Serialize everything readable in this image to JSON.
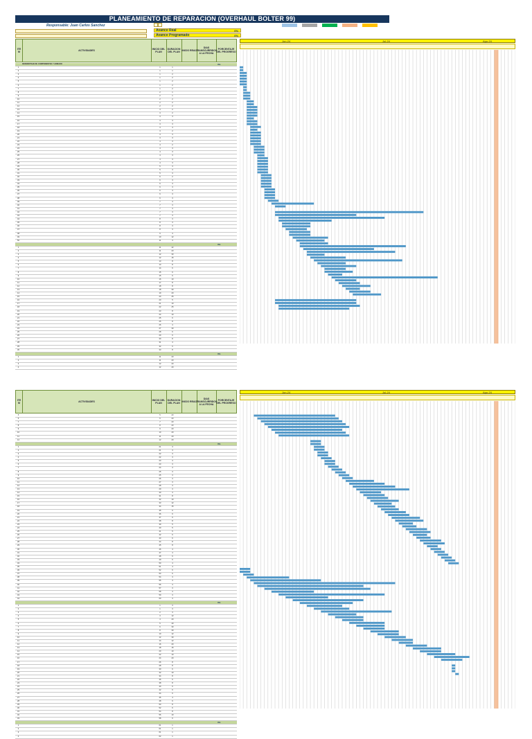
{
  "sheet1": {
    "title": "PLANEAMIENTO DE REPARACION  (OVERHAUL BOLTER 99)",
    "responsible": "Responsable: Juan Carlos Sanchez",
    "info_lines": [
      "",
      ""
    ],
    "stats_top": {
      "label": "",
      "value": ""
    },
    "avance_real": {
      "label": "Avance Real",
      "pct": "0%"
    },
    "avance_programado": {
      "label": "Avance Programado",
      "pct": "0%"
    },
    "columns": {
      "item": "ITE M",
      "activity": "ACTIVIDADES",
      "start": "INICIO DEL PLAN",
      "duration": "DURACION DEL PLAN",
      "real_start": "INICIO REAL",
      "days_to_date": "DIAS TRANSCURRIDOS A LA FECHA",
      "progress": "PORCENTAJE DEL PROGRESO"
    },
    "months": [
      "Jun-24",
      "Jul-24",
      "Ago-24"
    ],
    "legend": [
      "",
      "",
      "",
      "",
      ""
    ],
    "rows": [
      {
        "type": "sec",
        "n": "",
        "act": "DESMONTAJE DE COMPONENTES Y ARMADO",
        "pct": "0%"
      },
      {
        "n": "1",
        "act": "",
        "a": "1",
        "b": "1"
      },
      {
        "n": "2",
        "act": "",
        "a": "1",
        "b": "1"
      },
      {
        "n": "3",
        "act": "",
        "a": "1",
        "b": "2"
      },
      {
        "n": "4",
        "act": "",
        "a": "1",
        "b": "2"
      },
      {
        "n": "5",
        "act": "",
        "a": "1",
        "b": "2"
      },
      {
        "n": "6",
        "act": "",
        "a": "1",
        "b": "2"
      },
      {
        "n": "7",
        "act": "",
        "a": "1",
        "b": "2"
      },
      {
        "n": "8",
        "act": "",
        "a": "2",
        "b": "1"
      },
      {
        "n": "9",
        "act": "",
        "a": "2",
        "b": "1"
      },
      {
        "n": "10",
        "act": "",
        "a": "2",
        "b": "2"
      },
      {
        "n": "11",
        "act": "",
        "a": "2",
        "b": "2"
      },
      {
        "n": "12",
        "act": "",
        "a": "2",
        "b": "2"
      },
      {
        "n": "13",
        "act": "",
        "a": "3",
        "b": "2"
      },
      {
        "n": "14",
        "act": "",
        "a": "3",
        "b": "2"
      },
      {
        "n": "15",
        "act": "",
        "a": "3",
        "b": "3"
      },
      {
        "n": "16",
        "act": "",
        "a": "3",
        "b": "3"
      },
      {
        "n": "17",
        "act": "",
        "a": "3",
        "b": "3"
      },
      {
        "n": "18",
        "act": "",
        "a": "3",
        "b": "3"
      },
      {
        "n": "19",
        "act": "",
        "a": "3",
        "b": "2"
      },
      {
        "n": "20",
        "act": "",
        "a": "3",
        "b": "3"
      },
      {
        "n": "21",
        "act": "",
        "a": "3",
        "b": "3"
      },
      {
        "n": "22",
        "act": "",
        "a": "4",
        "b": "3"
      },
      {
        "n": "23",
        "act": "",
        "a": "4",
        "b": "2"
      },
      {
        "n": "24",
        "act": "",
        "a": "4",
        "b": "3"
      },
      {
        "n": "25",
        "act": "",
        "a": "4",
        "b": "3"
      },
      {
        "n": "26",
        "act": "",
        "a": "4",
        "b": "3"
      },
      {
        "n": "27",
        "act": "",
        "a": "4",
        "b": "3"
      },
      {
        "n": "28",
        "act": "",
        "a": "4",
        "b": "3"
      },
      {
        "n": "29",
        "act": "",
        "a": "5",
        "b": "3"
      },
      {
        "n": "30",
        "act": "",
        "a": "5",
        "b": "3"
      },
      {
        "n": "31",
        "act": "",
        "a": "5",
        "b": "3"
      },
      {
        "n": "32",
        "act": "",
        "a": "6",
        "b": "2"
      },
      {
        "n": "33",
        "act": "",
        "a": "6",
        "b": "3"
      },
      {
        "n": "34",
        "act": "",
        "a": "6",
        "b": "3"
      },
      {
        "n": "35",
        "act": "",
        "a": "6",
        "b": "3"
      },
      {
        "n": "36",
        "act": "",
        "a": "6",
        "b": "3"
      },
      {
        "n": "37",
        "act": "",
        "a": "6",
        "b": "3"
      },
      {
        "n": "38",
        "act": "",
        "a": "6",
        "b": "3"
      },
      {
        "n": "39",
        "act": "",
        "a": "7",
        "b": "3"
      },
      {
        "n": "40",
        "act": "",
        "a": "7",
        "b": "3"
      },
      {
        "n": "41",
        "act": "",
        "a": "7",
        "b": "3"
      },
      {
        "n": "42",
        "act": "",
        "a": "7",
        "b": "3"
      },
      {
        "n": "43",
        "act": "",
        "a": "7",
        "b": "3"
      },
      {
        "n": "44",
        "act": "",
        "a": "8",
        "b": "3"
      },
      {
        "n": "45",
        "act": "",
        "a": "8",
        "b": "3"
      },
      {
        "n": "46",
        "act": "",
        "a": "8",
        "b": "3"
      },
      {
        "n": "47",
        "act": "",
        "a": "8",
        "b": "3"
      },
      {
        "n": "48",
        "act": "",
        "a": "9",
        "b": "3"
      },
      {
        "n": "49",
        "act": "",
        "a": "10",
        "b": "12"
      },
      {
        "n": "50",
        "act": "",
        "a": "11",
        "b": "3"
      },
      {
        "type": "sec",
        "n": "",
        "act": "",
        "pct": "0%"
      },
      {
        "n": "1",
        "act": "",
        "a": "11",
        "b": "42"
      },
      {
        "n": "2",
        "act": "",
        "a": "11",
        "b": "23"
      },
      {
        "n": "3",
        "act": "",
        "a": "12",
        "b": "30"
      },
      {
        "n": "4",
        "act": "",
        "a": "12",
        "b": "15"
      },
      {
        "n": "5",
        "act": "",
        "a": "13",
        "b": "8"
      },
      {
        "n": "6",
        "act": "",
        "a": "13",
        "b": "8"
      },
      {
        "n": "7",
        "act": "",
        "a": "14",
        "b": "6"
      },
      {
        "n": "8",
        "act": "",
        "a": "15",
        "b": "6"
      },
      {
        "n": "9",
        "act": "",
        "a": "15",
        "b": "6"
      },
      {
        "n": "10",
        "act": "",
        "a": "16",
        "b": "10"
      },
      {
        "n": "11",
        "act": "",
        "a": "17",
        "b": "8"
      },
      {
        "n": "12",
        "act": "",
        "a": "18",
        "b": "8"
      },
      {
        "n": "13",
        "act": "",
        "a": "18",
        "b": "30"
      },
      {
        "n": "14",
        "act": "",
        "a": "19",
        "b": "20"
      },
      {
        "n": "15",
        "act": "",
        "a": "20",
        "b": "25"
      },
      {
        "n": "16",
        "act": "",
        "a": "20",
        "b": "5"
      },
      {
        "n": "17",
        "act": "",
        "a": "21",
        "b": "10"
      },
      {
        "n": "18",
        "act": "",
        "a": "22",
        "b": "25"
      },
      {
        "n": "19",
        "act": "",
        "a": "23",
        "b": "8"
      },
      {
        "n": "20",
        "act": "",
        "a": "24",
        "b": "10"
      },
      {
        "n": "21",
        "act": "",
        "a": "25",
        "b": "6"
      },
      {
        "n": "22",
        "act": "",
        "a": "25",
        "b": "8"
      },
      {
        "n": "23",
        "act": "",
        "a": "26",
        "b": "4"
      },
      {
        "n": "24",
        "act": "",
        "a": "27",
        "b": "30"
      },
      {
        "n": "25",
        "act": "",
        "a": "28",
        "b": "6"
      },
      {
        "n": "26",
        "act": "",
        "a": "29",
        "b": "6"
      },
      {
        "n": "27",
        "act": "",
        "a": "30",
        "b": "8"
      },
      {
        "n": "28",
        "act": "",
        "a": "31",
        "b": "4"
      },
      {
        "n": "29",
        "act": "",
        "a": "32",
        "b": "6"
      },
      {
        "n": "30",
        "act": "",
        "a": "33",
        "b": "8"
      },
      {
        "type": "sec",
        "n": "",
        "act": "",
        "pct": "0%"
      },
      {
        "n": "1",
        "act": "",
        "a": "11",
        "b": "23"
      },
      {
        "n": "2",
        "act": "",
        "a": "11",
        "b": "23"
      },
      {
        "n": "3",
        "act": "",
        "a": "12",
        "b": "23"
      },
      {
        "n": "4",
        "act": "",
        "a": "12",
        "b": "20"
      }
    ]
  },
  "sheet2": {
    "months": [
      "Jun-24",
      "Jul-24",
      "Ago-24"
    ],
    "columns": {
      "item": "ITE M",
      "activity": "ACTIVIDADES",
      "start": "INICIO DEL PLAN",
      "duration": "DURACION DEL PLAN",
      "real_start": "INICIO REAL",
      "days_to_date": "DIAS TRANSCURRIDOS A LA FECHA",
      "progress": "PORCENTAJE DEL PROGRESO"
    },
    "rows": [
      {
        "n": "5",
        "act": "",
        "a": "5",
        "b": "23"
      },
      {
        "n": "6",
        "act": "",
        "a": "6",
        "b": "23"
      },
      {
        "n": "7",
        "act": "",
        "a": "7",
        "b": "23"
      },
      {
        "n": "8",
        "act": "",
        "a": "8",
        "b": "23"
      },
      {
        "n": "9",
        "act": "",
        "a": "9",
        "b": "23"
      },
      {
        "n": "10",
        "act": "",
        "a": "10",
        "b": "20"
      },
      {
        "n": "11",
        "act": "",
        "a": "11",
        "b": "20"
      },
      {
        "n": "12",
        "act": "",
        "a": "12",
        "b": "20"
      },
      {
        "type": "sec",
        "n": "",
        "act": "",
        "pct": "0%"
      },
      {
        "n": "1",
        "act": "",
        "a": "21",
        "b": "3"
      },
      {
        "n": "2",
        "act": "",
        "a": "21",
        "b": "3"
      },
      {
        "n": "3",
        "act": "",
        "a": "22",
        "b": "3"
      },
      {
        "n": "4",
        "act": "",
        "a": "22",
        "b": "3"
      },
      {
        "n": "5",
        "act": "",
        "a": "23",
        "b": "3"
      },
      {
        "n": "6",
        "act": "",
        "a": "23",
        "b": "3"
      },
      {
        "n": "7",
        "act": "",
        "a": "24",
        "b": "3"
      },
      {
        "n": "8",
        "act": "",
        "a": "25",
        "b": "3"
      },
      {
        "n": "9",
        "act": "",
        "a": "25",
        "b": "3"
      },
      {
        "n": "10",
        "act": "",
        "a": "26",
        "b": "3"
      },
      {
        "n": "11",
        "act": "",
        "a": "27",
        "b": "3"
      },
      {
        "n": "12",
        "act": "",
        "a": "28",
        "b": "3"
      },
      {
        "n": "13",
        "act": "",
        "a": "29",
        "b": "3"
      },
      {
        "n": "14",
        "act": "",
        "a": "30",
        "b": "3"
      },
      {
        "n": "15",
        "act": "",
        "a": "31",
        "b": "8"
      },
      {
        "n": "16",
        "act": "",
        "a": "32",
        "b": "10"
      },
      {
        "n": "17",
        "act": "",
        "a": "33",
        "b": "12"
      },
      {
        "n": "18",
        "act": "",
        "a": "34",
        "b": "15"
      },
      {
        "n": "19",
        "act": "",
        "a": "35",
        "b": "6"
      },
      {
        "n": "20",
        "act": "",
        "a": "36",
        "b": "6"
      },
      {
        "n": "21",
        "act": "",
        "a": "37",
        "b": "6"
      },
      {
        "n": "22",
        "act": "",
        "a": "38",
        "b": "8"
      },
      {
        "n": "23",
        "act": "",
        "a": "39",
        "b": "5"
      },
      {
        "n": "24",
        "act": "",
        "a": "40",
        "b": "5"
      },
      {
        "n": "25",
        "act": "",
        "a": "41",
        "b": "5"
      },
      {
        "n": "26",
        "act": "",
        "a": "42",
        "b": "6"
      },
      {
        "n": "27",
        "act": "",
        "a": "43",
        "b": "6"
      },
      {
        "n": "28",
        "act": "",
        "a": "44",
        "b": "8"
      },
      {
        "n": "29",
        "act": "",
        "a": "45",
        "b": "8"
      },
      {
        "n": "30",
        "act": "",
        "a": "46",
        "b": "4"
      },
      {
        "n": "31",
        "act": "",
        "a": "47",
        "b": "4"
      },
      {
        "n": "32",
        "act": "",
        "a": "48",
        "b": "6"
      },
      {
        "n": "33",
        "act": "",
        "a": "49",
        "b": "6"
      },
      {
        "n": "34",
        "act": "",
        "a": "50",
        "b": "4"
      },
      {
        "n": "35",
        "act": "",
        "a": "51",
        "b": "4"
      },
      {
        "n": "36",
        "act": "",
        "a": "52",
        "b": "6"
      },
      {
        "n": "37",
        "act": "",
        "a": "53",
        "b": "6"
      },
      {
        "n": "38",
        "act": "",
        "a": "54",
        "b": "3"
      },
      {
        "n": "39",
        "act": "",
        "a": "55",
        "b": "3"
      },
      {
        "n": "40",
        "act": "",
        "a": "56",
        "b": "3"
      },
      {
        "n": "41",
        "act": "",
        "a": "57",
        "b": "3"
      },
      {
        "n": "42",
        "act": "",
        "a": "58",
        "b": "3"
      },
      {
        "n": "43",
        "act": "",
        "a": "59",
        "b": "3"
      },
      {
        "n": "44",
        "act": "",
        "a": "60",
        "b": "3"
      },
      {
        "type": "sec",
        "n": "",
        "act": "",
        "pct": "0%"
      },
      {
        "n": "1",
        "act": "",
        "a": "1",
        "b": "3"
      },
      {
        "n": "2",
        "act": "",
        "a": "1",
        "b": "3"
      },
      {
        "n": "3",
        "act": "",
        "a": "2",
        "b": "3"
      },
      {
        "n": "4",
        "act": "",
        "a": "3",
        "b": "12"
      },
      {
        "n": "5",
        "act": "",
        "a": "4",
        "b": "20"
      },
      {
        "n": "6",
        "act": "",
        "a": "5",
        "b": "40"
      },
      {
        "n": "7",
        "act": "",
        "a": "6",
        "b": "30"
      },
      {
        "n": "8",
        "act": "",
        "a": "8",
        "b": "30"
      },
      {
        "n": "9",
        "act": "",
        "a": "10",
        "b": "12"
      },
      {
        "n": "10",
        "act": "",
        "a": "12",
        "b": "30"
      },
      {
        "n": "11",
        "act": "",
        "a": "14",
        "b": "12"
      },
      {
        "n": "12",
        "act": "",
        "a": "16",
        "b": "20"
      },
      {
        "n": "13",
        "act": "",
        "a": "18",
        "b": "15"
      },
      {
        "n": "14",
        "act": "",
        "a": "20",
        "b": "10"
      },
      {
        "n": "15",
        "act": "",
        "a": "22",
        "b": "10"
      },
      {
        "n": "16",
        "act": "",
        "a": "24",
        "b": "20"
      },
      {
        "n": "17",
        "act": "",
        "a": "26",
        "b": "8"
      },
      {
        "n": "18",
        "act": "",
        "a": "28",
        "b": "8"
      },
      {
        "n": "19",
        "act": "",
        "a": "30",
        "b": "6"
      },
      {
        "n": "20",
        "act": "",
        "a": "32",
        "b": "10"
      },
      {
        "n": "21",
        "act": "",
        "a": "34",
        "b": "8"
      },
      {
        "n": "22",
        "act": "",
        "a": "36",
        "b": "6"
      },
      {
        "n": "23",
        "act": "",
        "a": "38",
        "b": "8"
      },
      {
        "n": "24",
        "act": "",
        "a": "40",
        "b": "6"
      },
      {
        "n": "25",
        "act": "",
        "a": "42",
        "b": "6"
      },
      {
        "n": "26",
        "act": "",
        "a": "44",
        "b": "6"
      },
      {
        "n": "27",
        "act": "",
        "a": "46",
        "b": "4"
      },
      {
        "n": "28",
        "act": "",
        "a": "48",
        "b": "6"
      },
      {
        "n": "29",
        "act": "",
        "a": "50",
        "b": "8"
      },
      {
        "n": "30",
        "act": "",
        "a": "52",
        "b": "6"
      },
      {
        "n": "31",
        "act": "",
        "a": "54",
        "b": "8"
      },
      {
        "n": "32",
        "act": "",
        "a": "56",
        "b": "10"
      },
      {
        "n": "33",
        "act": "",
        "a": "58",
        "b": "6"
      },
      {
        "type": "sec",
        "n": "",
        "act": "",
        "pct": "0%"
      },
      {
        "n": "1",
        "act": "",
        "a": "61",
        "b": "1"
      },
      {
        "n": "2",
        "act": "",
        "a": "61",
        "b": "1"
      },
      {
        "n": "3",
        "act": "",
        "a": "61",
        "b": "1"
      },
      {
        "n": "4",
        "act": "",
        "a": "62",
        "b": "1"
      }
    ]
  },
  "colors": {
    "title_bg": "#17365d",
    "bar": "#4f97c8",
    "header_green": "#d6e5b8",
    "section_green": "#c4d79b",
    "month_yellow": "#fff200",
    "today_orange": "#f4b183"
  },
  "legend_colors": [
    "#9dc3e6",
    "#a6a6a6",
    "#00b050",
    "#f4b183",
    "#ffc000"
  ],
  "total_days": 78
}
